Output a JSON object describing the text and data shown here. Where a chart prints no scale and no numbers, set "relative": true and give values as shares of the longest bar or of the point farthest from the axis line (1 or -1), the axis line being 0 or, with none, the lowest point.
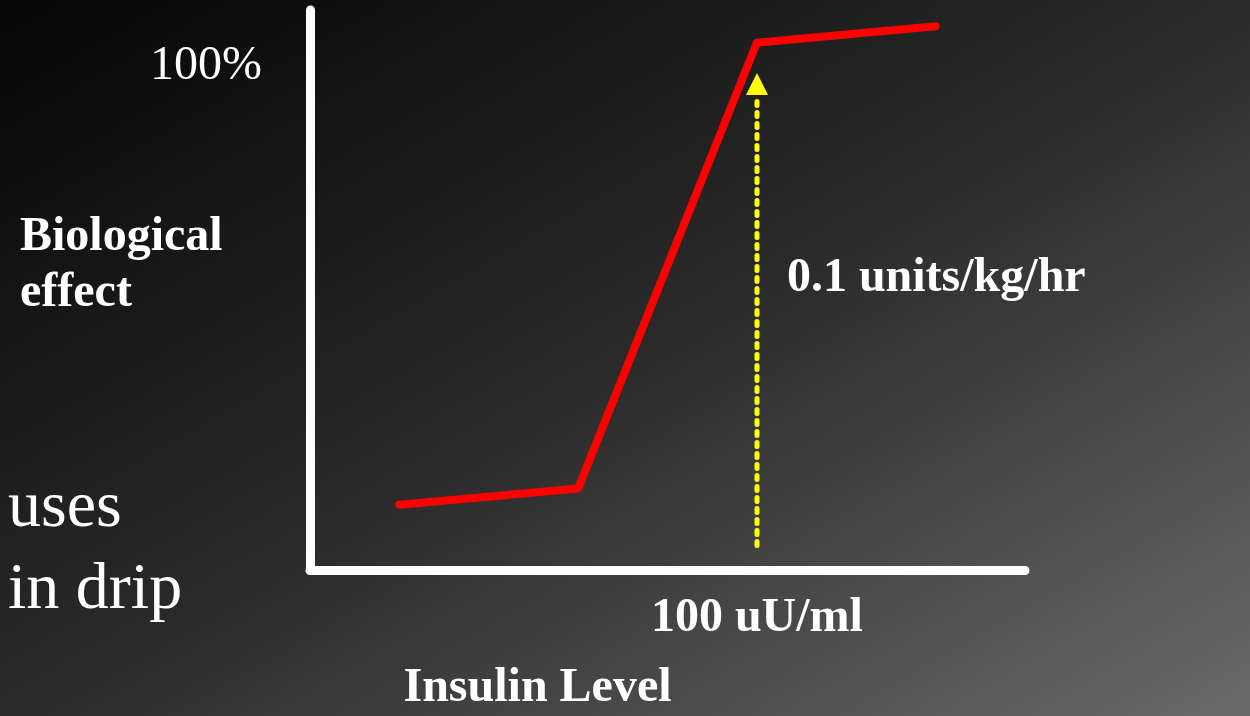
{
  "chart_data": {
    "type": "line",
    "xlabel": "Insulin Level",
    "ylabel": "Biological\neffect",
    "relative": true,
    "categories": [
      null,
      null,
      null,
      null
    ],
    "values": [
      0.12,
      0.15,
      0.97,
      1
    ],
    "color": "#ff0000",
    "marker": "none",
    "line_style": "solid",
    "annotations": [
      "100%",
      "uses",
      "in drip",
      "100 uU/ml",
      "0.1 units/kg/hr"
    ]
  }
}
